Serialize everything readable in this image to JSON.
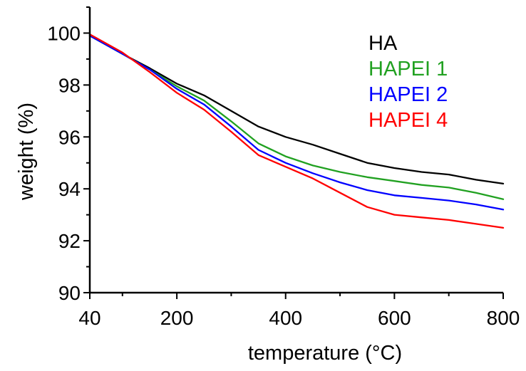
{
  "chart_data": {
    "type": "line",
    "xlabel": "temperature (°C)",
    "ylabel": "weight (%)",
    "xlim": [
      40,
      800
    ],
    "ylim": [
      90,
      101
    ],
    "x_ticks": [
      40,
      200,
      400,
      600,
      800
    ],
    "x_minor_ticks": [
      100,
      300,
      500,
      700
    ],
    "y_ticks": [
      90,
      92,
      94,
      96,
      98,
      100
    ],
    "y_minor_ticks": [
      91,
      93,
      95,
      97,
      99,
      101
    ],
    "grid": false,
    "legend_position": "top-right",
    "series": [
      {
        "name": "HA",
        "color": "#000000",
        "x": [
          40,
          100,
          150,
          200,
          250,
          300,
          350,
          400,
          450,
          500,
          550,
          600,
          650,
          700,
          750,
          800
        ],
        "y": [
          99.9,
          99.2,
          98.65,
          98.05,
          97.6,
          97.0,
          96.4,
          96.0,
          95.7,
          95.35,
          95.0,
          94.8,
          94.65,
          94.55,
          94.35,
          94.2
        ]
      },
      {
        "name": "HAPEI 1",
        "color": "#21a121",
        "x": [
          40,
          100,
          150,
          200,
          250,
          300,
          350,
          400,
          450,
          500,
          550,
          600,
          650,
          700,
          750,
          800
        ],
        "y": [
          99.9,
          99.2,
          98.6,
          97.95,
          97.4,
          96.6,
          95.75,
          95.25,
          94.9,
          94.65,
          94.45,
          94.3,
          94.15,
          94.05,
          93.85,
          93.6
        ]
      },
      {
        "name": "HAPEI 2",
        "color": "#0000ff",
        "x": [
          40,
          100,
          150,
          200,
          250,
          300,
          350,
          400,
          450,
          500,
          550,
          600,
          650,
          700,
          750,
          800
        ],
        "y": [
          99.9,
          99.2,
          98.6,
          97.85,
          97.25,
          96.4,
          95.5,
          95.0,
          94.6,
          94.25,
          93.95,
          93.75,
          93.65,
          93.55,
          93.4,
          93.2
        ]
      },
      {
        "name": "HAPEI 4",
        "color": "#ff0000",
        "x": [
          40,
          100,
          150,
          200,
          250,
          300,
          350,
          400,
          450,
          500,
          550,
          600,
          650,
          700,
          750,
          800
        ],
        "y": [
          99.95,
          99.25,
          98.5,
          97.7,
          97.05,
          96.2,
          95.3,
          94.85,
          94.4,
          93.85,
          93.3,
          93.0,
          92.9,
          92.8,
          92.65,
          92.5
        ]
      }
    ]
  }
}
